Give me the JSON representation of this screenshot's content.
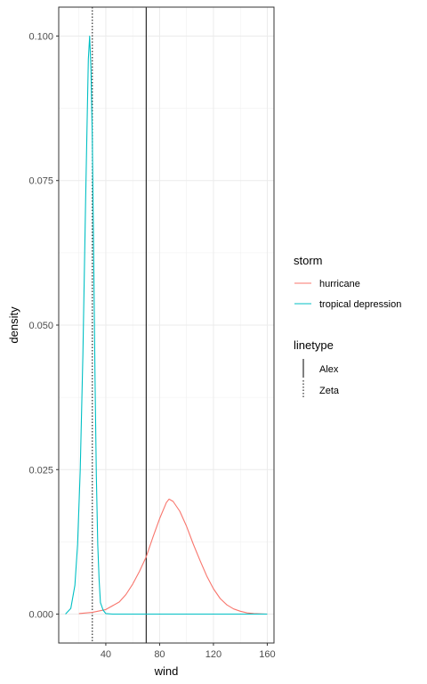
{
  "chart_data": {
    "type": "line",
    "xlabel": "wind",
    "ylabel": "density",
    "xlim": [
      5,
      165
    ],
    "ylim": [
      -0.005,
      0.105
    ],
    "x_ticks": [
      40,
      80,
      120,
      160
    ],
    "x_tick_labels": [
      "40",
      "80",
      "120",
      "160"
    ],
    "x_minor_ticks": [
      20,
      60,
      100,
      140
    ],
    "y_ticks": [
      0.0,
      0.025,
      0.05,
      0.075,
      0.1
    ],
    "y_tick_labels": [
      "0.000",
      "0.025",
      "0.050",
      "0.075",
      "0.100"
    ],
    "y_minor_ticks": [
      0.0125,
      0.0375,
      0.0625,
      0.0875
    ],
    "grid": true,
    "legend_position": "right",
    "series": [
      {
        "name": "hurricane",
        "color": "#F8766D",
        "x": [
          20,
          30,
          40,
          50,
          55,
          60,
          65,
          70,
          75,
          80,
          85,
          87,
          90,
          95,
          100,
          105,
          110,
          115,
          120,
          125,
          130,
          135,
          140,
          145,
          150,
          160
        ],
        "y": [
          0.0001,
          0.0003,
          0.0008,
          0.0021,
          0.0034,
          0.0052,
          0.0074,
          0.0099,
          0.0133,
          0.0165,
          0.0193,
          0.0199,
          0.0195,
          0.0178,
          0.0152,
          0.0121,
          0.0093,
          0.0066,
          0.0044,
          0.0027,
          0.0016,
          0.0009,
          0.0005,
          0.0002,
          0.0001,
          0.0
        ]
      },
      {
        "name": "tropical depression",
        "color": "#00BFC4",
        "x": [
          10,
          14,
          17,
          19,
          21,
          23,
          25,
          26,
          27,
          28,
          29,
          30,
          31,
          32,
          33,
          34,
          35,
          36,
          38,
          40,
          45,
          50,
          60,
          80,
          100,
          120,
          140,
          160
        ],
        "y": [
          0.0,
          0.001,
          0.005,
          0.012,
          0.025,
          0.045,
          0.072,
          0.084,
          0.096,
          0.1,
          0.094,
          0.082,
          0.062,
          0.041,
          0.024,
          0.012,
          0.006,
          0.002,
          0.0007,
          0.0001,
          0.0,
          0.0,
          0.0,
          0.0,
          0.0,
          0.0,
          0.0,
          0.0
        ]
      }
    ],
    "vlines": [
      {
        "name": "Alex",
        "x": 70,
        "linetype": "solid",
        "color": "#000000"
      },
      {
        "name": "Zeta",
        "x": 30,
        "linetype": "dotted",
        "color": "#000000"
      }
    ],
    "legend": {
      "storm": {
        "title": "storm",
        "items": [
          {
            "label": "hurricane",
            "color": "#F8766D"
          },
          {
            "label": "tropical depression",
            "color": "#00BFC4"
          }
        ]
      },
      "linetype": {
        "title": "linetype",
        "items": [
          {
            "label": "Alex",
            "linetype": "solid"
          },
          {
            "label": "Zeta",
            "linetype": "dotted"
          }
        ]
      }
    }
  }
}
